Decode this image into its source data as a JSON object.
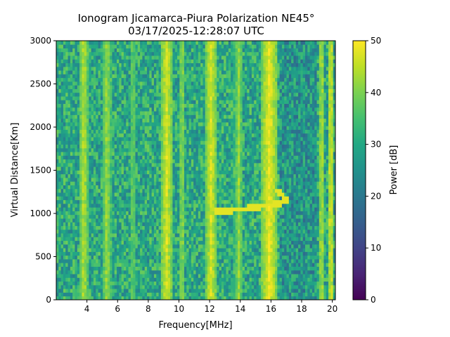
{
  "chart_data": {
    "type": "heatmap",
    "title": "Ionogram Jicamarca-Piura Polarization NE45°",
    "subtitle": "03/17/2025-12:28:07 UTC",
    "xlabel": "Frequency[MHz]",
    "ylabel": "Virtual Distance[Km]",
    "colorbar_label": "Power [dB]",
    "colormap": "viridis",
    "xlim": [
      2.0,
      20.2
    ],
    "ylim": [
      0,
      3000
    ],
    "clim": [
      0,
      50
    ],
    "xticks": [
      4,
      6,
      8,
      10,
      12,
      14,
      16,
      18,
      20
    ],
    "yticks": [
      0,
      500,
      1000,
      1500,
      2000,
      2500,
      3000
    ],
    "cticks": [
      0,
      10,
      20,
      30,
      40,
      50
    ],
    "background_level_db": 30,
    "interference_bands_mhz": [
      {
        "center": 3.8,
        "width": 0.3,
        "level_db": 45
      },
      {
        "center": 5.3,
        "width": 0.3,
        "level_db": 43
      },
      {
        "center": 7.0,
        "width": 0.2,
        "level_db": 40
      },
      {
        "center": 9.2,
        "width": 0.4,
        "level_db": 47
      },
      {
        "center": 10.2,
        "width": 0.2,
        "level_db": 43
      },
      {
        "center": 12.1,
        "width": 0.4,
        "level_db": 47
      },
      {
        "center": 13.9,
        "width": 0.3,
        "level_db": 42
      },
      {
        "center": 15.9,
        "width": 0.5,
        "level_db": 49
      },
      {
        "center": 19.3,
        "width": 0.2,
        "level_db": 45
      },
      {
        "center": 19.9,
        "width": 0.2,
        "level_db": 48
      }
    ],
    "trace": {
      "level_db": 48,
      "points": [
        [
          12.5,
          1030
        ],
        [
          13.5,
          1040
        ],
        [
          14.5,
          1060
        ],
        [
          15.3,
          1080
        ],
        [
          16.0,
          1100
        ],
        [
          16.6,
          1120
        ],
        [
          17.0,
          1150
        ],
        [
          16.8,
          1200
        ],
        [
          16.5,
          1260
        ]
      ]
    }
  }
}
